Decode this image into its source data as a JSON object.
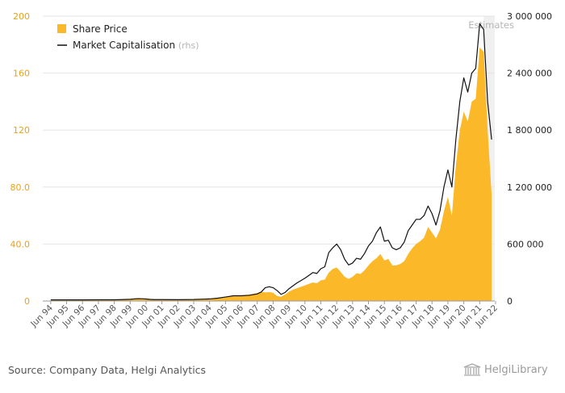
{
  "chart_data": {
    "type": "area",
    "categories": [
      "Jun 94",
      "Jun 95",
      "Jun 96",
      "Jun 97",
      "Jun 98",
      "Jun 99",
      "Jun 00",
      "Jun 01",
      "Jun 02",
      "Jun 03",
      "Jun 04",
      "Jun 05",
      "Jun 06",
      "Jun 07",
      "Jun 08",
      "Jun 09",
      "Jun 10",
      "Jun 11",
      "Jun 12",
      "Jun 13",
      "Jun 14",
      "Jun 15",
      "Jun 16",
      "Jun 17",
      "Jun 18",
      "Jun 19",
      "Jun 20",
      "Jun 21",
      "Jun 22"
    ],
    "y_left_ticks": [
      "0",
      "40.0",
      "80.0",
      "120",
      "160",
      "200"
    ],
    "y_right_ticks": [
      "0",
      "600 000",
      "1 200 000",
      "1 800 000",
      "2 400 000",
      "3 000 000"
    ],
    "ylim_left": [
      0,
      200
    ],
    "ylim_right": [
      0,
      3000000
    ],
    "estimates_label": "Estimates",
    "estimates_from": 2021.75,
    "colors": {
      "share": "#FBB829",
      "cap": "#111111",
      "estimates_band": "#f0f0f0",
      "left_axis": "#E8A317",
      "grid": "#e5e5e5"
    },
    "series": [
      {
        "name": "Share Price",
        "axis": "left",
        "x": [
          1994.5,
          1995.5,
          1996.5,
          1997.5,
          1998.5,
          1999.0,
          1999.5,
          1999.75,
          2000.0,
          2000.25,
          2000.5,
          2000.75,
          2001.0,
          2001.5,
          2002.5,
          2003.5,
          2004.5,
          2005.0,
          2005.5,
          2006.0,
          2006.5,
          2007.0,
          2007.5,
          2007.75,
          2008.0,
          2008.25,
          2008.5,
          2008.75,
          2009.0,
          2009.25,
          2009.5,
          2009.75,
          2010.0,
          2010.5,
          2011.0,
          2011.25,
          2011.5,
          2011.75,
          2012.0,
          2012.25,
          2012.5,
          2012.75,
          2013.0,
          2013.25,
          2013.5,
          2013.75,
          2014.0,
          2014.25,
          2014.5,
          2014.75,
          2015.0,
          2015.25,
          2015.5,
          2015.75,
          2016.0,
          2016.25,
          2016.5,
          2016.75,
          2017.0,
          2017.25,
          2017.5,
          2017.75,
          2018.0,
          2018.25,
          2018.5,
          2018.75,
          2019.0,
          2019.25,
          2019.5,
          2019.75,
          2020.0,
          2020.25,
          2020.5,
          2020.75,
          2021.0,
          2021.25,
          2021.5,
          2021.75,
          2022.0,
          2022.25
        ],
        "values": [
          0.5,
          0.5,
          0.6,
          0.6,
          0.6,
          0.8,
          1.2,
          1.5,
          1.7,
          1.6,
          1.5,
          1.2,
          1.0,
          1.0,
          0.9,
          1.0,
          1.5,
          2.0,
          2.8,
          3.5,
          4.0,
          4.5,
          5.5,
          6.5,
          6.0,
          6.2,
          5.8,
          3.5,
          3.0,
          4.5,
          6.5,
          8.0,
          9.0,
          11.0,
          13.0,
          12.5,
          14.5,
          15.0,
          20.0,
          22.5,
          23.5,
          20.5,
          17.0,
          15.5,
          17.0,
          19.5,
          19.0,
          21.5,
          25.0,
          28.0,
          30.0,
          33.0,
          28.5,
          29.5,
          25.0,
          25.0,
          26.0,
          28.0,
          33.0,
          37.0,
          40.0,
          42.0,
          44.5,
          52.0,
          48.0,
          44.0,
          50.0,
          63.0,
          73.0,
          60.0,
          95.0,
          120.0,
          133.0,
          126.0,
          140.0,
          142.0,
          178.0,
          175.0,
          120.0,
          75.0
        ]
      },
      {
        "name": "Market Capitalisation",
        "name_suffix": "(rhs)",
        "axis": "right",
        "x": [
          1994.5,
          1995.5,
          1996.5,
          1997.5,
          1998.5,
          1999.0,
          1999.5,
          1999.75,
          2000.0,
          2000.25,
          2000.5,
          2000.75,
          2001.0,
          2001.5,
          2002.5,
          2003.5,
          2004.5,
          2005.0,
          2005.5,
          2006.0,
          2006.5,
          2007.0,
          2007.5,
          2007.75,
          2008.0,
          2008.25,
          2008.5,
          2008.75,
          2009.0,
          2009.25,
          2009.5,
          2009.75,
          2010.0,
          2010.5,
          2011.0,
          2011.25,
          2011.5,
          2011.75,
          2012.0,
          2012.25,
          2012.5,
          2012.75,
          2013.0,
          2013.25,
          2013.5,
          2013.75,
          2014.0,
          2014.25,
          2014.5,
          2014.75,
          2015.0,
          2015.25,
          2015.5,
          2015.75,
          2016.0,
          2016.25,
          2016.5,
          2016.75,
          2017.0,
          2017.25,
          2017.5,
          2017.75,
          2018.0,
          2018.25,
          2018.5,
          2018.75,
          2019.0,
          2019.25,
          2019.5,
          2019.75,
          2020.0,
          2020.25,
          2020.5,
          2020.75,
          2021.0,
          2021.25,
          2021.5,
          2021.75,
          2022.0,
          2022.25
        ],
        "values": [
          12000,
          12000,
          12000,
          13000,
          13000,
          15000,
          18000,
          22000,
          25000,
          24000,
          21000,
          17000,
          15000,
          15000,
          14000,
          16000,
          22000,
          30000,
          42000,
          55000,
          55000,
          60000,
          75000,
          95000,
          140000,
          150000,
          140000,
          110000,
          70000,
          90000,
          130000,
          160000,
          190000,
          240000,
          300000,
          290000,
          340000,
          360000,
          510000,
          560000,
          600000,
          540000,
          440000,
          380000,
          400000,
          450000,
          440000,
          500000,
          580000,
          630000,
          720000,
          780000,
          630000,
          640000,
          560000,
          540000,
          560000,
          620000,
          740000,
          800000,
          860000,
          860000,
          900000,
          1000000,
          920000,
          800000,
          950000,
          1200000,
          1380000,
          1200000,
          1700000,
          2100000,
          2350000,
          2200000,
          2400000,
          2450000,
          2920000,
          2860000,
          2100000,
          1700000
        ]
      }
    ]
  },
  "footer": {
    "source": "Source: Company Data, Helgi Analytics",
    "brand": "HelgiLibrary"
  }
}
